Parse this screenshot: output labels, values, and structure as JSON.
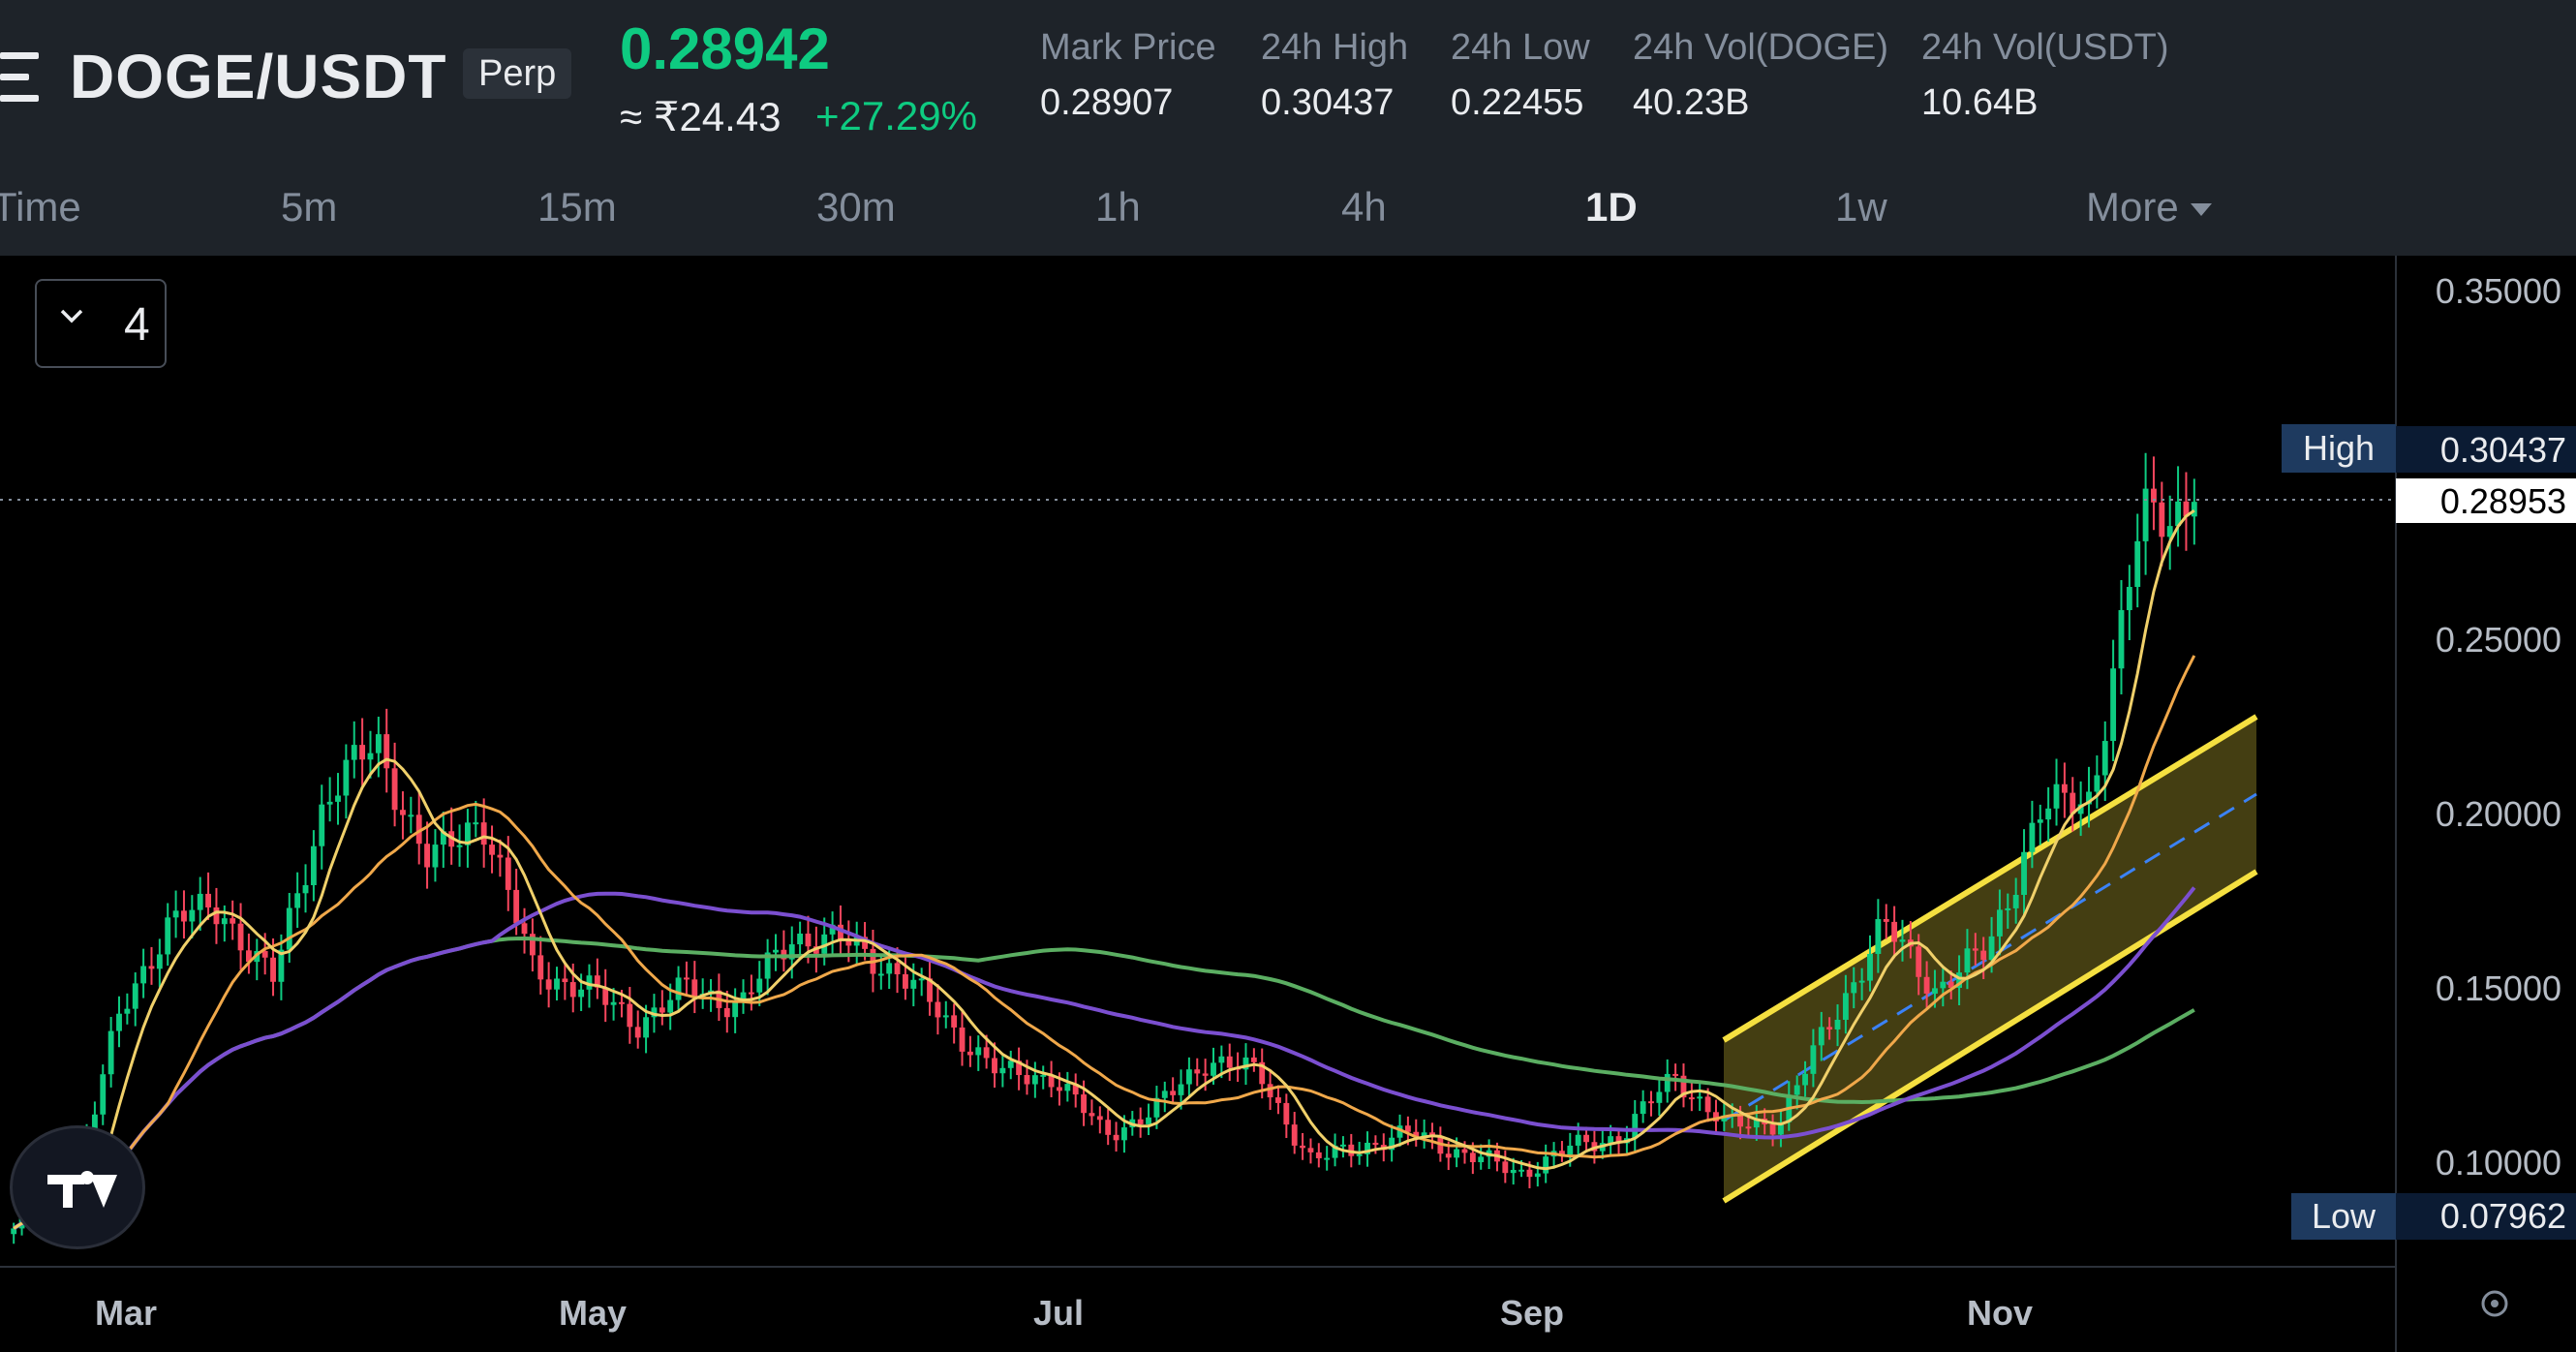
{
  "header": {
    "pair": "DOGE/USDT",
    "contract_type": "Perp",
    "last_price": "0.28942",
    "fiat_price": "≈ ₹24.43",
    "change_percent": "+27.29%",
    "stats": [
      {
        "label": "Mark Price",
        "value": "0.28907"
      },
      {
        "label": "24h High",
        "value": "0.30437"
      },
      {
        "label": "24h Low",
        "value": "0.22455"
      },
      {
        "label": "24h Vol(DOGE)",
        "value": "40.23B"
      },
      {
        "label": "24h Vol(USDT)",
        "value": "10.64B"
      }
    ]
  },
  "intervals": {
    "items": [
      "Time",
      "5m",
      "15m",
      "30m",
      "1h",
      "4h",
      "1D",
      "1w",
      "More"
    ],
    "active": "1D"
  },
  "indicator_toggle": {
    "count": "4",
    "icon": "chevron-down-icon"
  },
  "colors": {
    "up": "#0ECB81",
    "down": "#F6465D",
    "background": "#000000",
    "header_bg": "#1E2329",
    "ma_short": "#F0D06A",
    "ma_mid": "#F0A84A",
    "ma_long": "#7B4FD0",
    "ma_longest": "#5BAE62",
    "channel": "#F5E040",
    "midline": "#3B82F6"
  },
  "chart": {
    "type": "candlestick",
    "y_ticks": [
      "0.35000",
      "0.25000",
      "0.20000",
      "0.15000",
      "0.10000"
    ],
    "x_ticks": [
      "Mar",
      "May",
      "Jul",
      "Sep",
      "Nov"
    ],
    "high_marker": {
      "label": "High",
      "value": "0.30437"
    },
    "current_marker": {
      "value": "0.28953"
    },
    "low_marker": {
      "label": "Low",
      "value": "0.07962"
    }
  },
  "chart_data": {
    "type": "line",
    "series": [
      {
        "points": [
          {
            "x": "Feb 16",
            "y": 0.081
          },
          {
            "x": "Feb 24",
            "y": 0.085
          },
          {
            "x": "Mar 01",
            "y": 0.14
          },
          {
            "x": "Mar 06",
            "y": 0.17
          },
          {
            "x": "Mar 12",
            "y": 0.172
          },
          {
            "x": "Mar 18",
            "y": 0.152
          },
          {
            "x": "Mar 26",
            "y": 0.205
          },
          {
            "x": "Mar 29",
            "y": 0.22
          },
          {
            "x": "Apr 05",
            "y": 0.185
          },
          {
            "x": "Apr 10",
            "y": 0.2
          },
          {
            "x": "Apr 15",
            "y": 0.155
          },
          {
            "x": "Apr 20",
            "y": 0.15
          },
          {
            "x": "Apr 28",
            "y": 0.14
          },
          {
            "x": "May 06",
            "y": 0.15
          },
          {
            "x": "May 14",
            "y": 0.145
          },
          {
            "x": "May 22",
            "y": 0.165
          },
          {
            "x": "May 28",
            "y": 0.163
          },
          {
            "x": "Jun 05",
            "y": 0.155
          },
          {
            "x": "Jun 11",
            "y": 0.14
          },
          {
            "x": "Jun 18",
            "y": 0.125
          },
          {
            "x": "Jun 26",
            "y": 0.125
          },
          {
            "x": "Jul 04",
            "y": 0.108
          },
          {
            "x": "Jul 12",
            "y": 0.115
          },
          {
            "x": "Jul 20",
            "y": 0.13
          },
          {
            "x": "Jul 28",
            "y": 0.125
          },
          {
            "x": "Aug 05",
            "y": 0.1
          },
          {
            "x": "Aug 12",
            "y": 0.105
          },
          {
            "x": "Aug 20",
            "y": 0.108
          },
          {
            "x": "Aug 28",
            "y": 0.102
          },
          {
            "x": "Sep 06",
            "y": 0.097
          },
          {
            "x": "Sep 14",
            "y": 0.104
          },
          {
            "x": "Sep 22",
            "y": 0.108
          },
          {
            "x": "Sep 29",
            "y": 0.125
          },
          {
            "x": "Oct 06",
            "y": 0.11
          },
          {
            "x": "Oct 14",
            "y": 0.112
          },
          {
            "x": "Oct 22",
            "y": 0.14
          },
          {
            "x": "Oct 29",
            "y": 0.168
          },
          {
            "x": "Nov 02",
            "y": 0.15
          },
          {
            "x": "Nov 05",
            "y": 0.16
          },
          {
            "x": "Nov 07",
            "y": 0.2
          },
          {
            "x": "Nov 09",
            "y": 0.205
          },
          {
            "x": "Nov 10",
            "y": 0.285
          },
          {
            "x": "Nov 11",
            "y": 0.2894
          }
        ]
      }
    ],
    "ylim": [
      0.07,
      0.36
    ],
    "grid": false
  }
}
